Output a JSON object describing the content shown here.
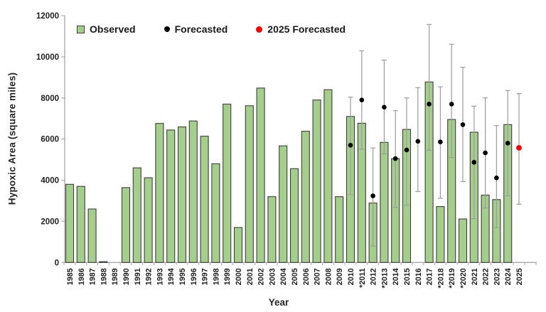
{
  "colors": {
    "bar_fill": "#a5cd8c",
    "bar_stroke": "#3f3f3f",
    "error_bar": "#9c9c9c",
    "forecast_dot": "#000000",
    "forecast_2025_dot": "#f40000",
    "axis": "#a6a6a6",
    "tick_text": "#1f1f1f"
  },
  "chart_data": {
    "type": "bar",
    "title": "",
    "ylabel": "Hypoxic Area (square miles)",
    "xlabel": "Year",
    "ylim": [
      0,
      12000
    ],
    "ytick_step": 2000,
    "grid": false,
    "legend_position": "top-left-inside",
    "legend": [
      {
        "label": "Observed",
        "marker": "square",
        "color": "#a5cd8c"
      },
      {
        "label": "Forecasted",
        "marker": "dot",
        "color": "#000000"
      },
      {
        "label": "2025 Forecasted",
        "marker": "dot",
        "color": "#f40000"
      }
    ],
    "categories": [
      "1985",
      "1986",
      "1987",
      "1988",
      "1989",
      "1990",
      "1991",
      "1992",
      "1993",
      "1994",
      "1995",
      "1996",
      "1997",
      "1998",
      "1999",
      "2000",
      "2001",
      "2002",
      "2003",
      "2004",
      "2005",
      "2006",
      "2007",
      "2008",
      "2009",
      "2010",
      "*2011",
      "2012",
      "*2013",
      "2014",
      "2015",
      "2016",
      "2017",
      "*2018",
      "*2019",
      "*2020",
      "2021",
      "2022",
      "2023",
      "2024",
      "2025"
    ],
    "series": [
      {
        "name": "Observed",
        "values": [
          3800,
          3700,
          2600,
          40,
          null,
          3640,
          4600,
          4120,
          6760,
          6440,
          6590,
          6880,
          6140,
          4800,
          7700,
          1700,
          7620,
          8480,
          3200,
          5670,
          4560,
          6380,
          7900,
          8400,
          3200,
          7100,
          6770,
          2890,
          5840,
          5050,
          6470,
          null,
          8776,
          2720,
          6952,
          2116,
          6334,
          3275,
          3058,
          6705,
          null
        ]
      },
      {
        "name": "Forecasted",
        "values": [
          null,
          null,
          null,
          null,
          null,
          null,
          null,
          null,
          null,
          null,
          null,
          null,
          null,
          null,
          null,
          null,
          null,
          null,
          null,
          null,
          null,
          null,
          null,
          null,
          null,
          5700,
          7900,
          3240,
          7550,
          5050,
          5470,
          5890,
          7700,
          5860,
          7700,
          6700,
          4870,
          5330,
          4110,
          5800,
          5574
        ],
        "ci_low": [
          null,
          null,
          null,
          null,
          null,
          null,
          null,
          null,
          null,
          null,
          null,
          null,
          null,
          null,
          null,
          null,
          null,
          null,
          null,
          null,
          null,
          null,
          null,
          null,
          null,
          3300,
          5500,
          800,
          5280,
          2680,
          2780,
          3450,
          5450,
          3120,
          5100,
          3930,
          2130,
          2650,
          1690,
          3240,
          2830
        ],
        "ci_high": [
          null,
          null,
          null,
          null,
          null,
          null,
          null,
          null,
          null,
          null,
          null,
          null,
          null,
          null,
          null,
          null,
          null,
          null,
          null,
          null,
          null,
          null,
          null,
          null,
          null,
          8040,
          10290,
          5570,
          9840,
          7380,
          8000,
          8500,
          11570,
          8540,
          10610,
          9490,
          7600,
          8000,
          6650,
          8360,
          8210
        ]
      }
    ],
    "forecast_2025_index": 40,
    "ytick_labels": [
      "0",
      "2000",
      "4000",
      "6000",
      "8000",
      "10000",
      "12000"
    ]
  }
}
